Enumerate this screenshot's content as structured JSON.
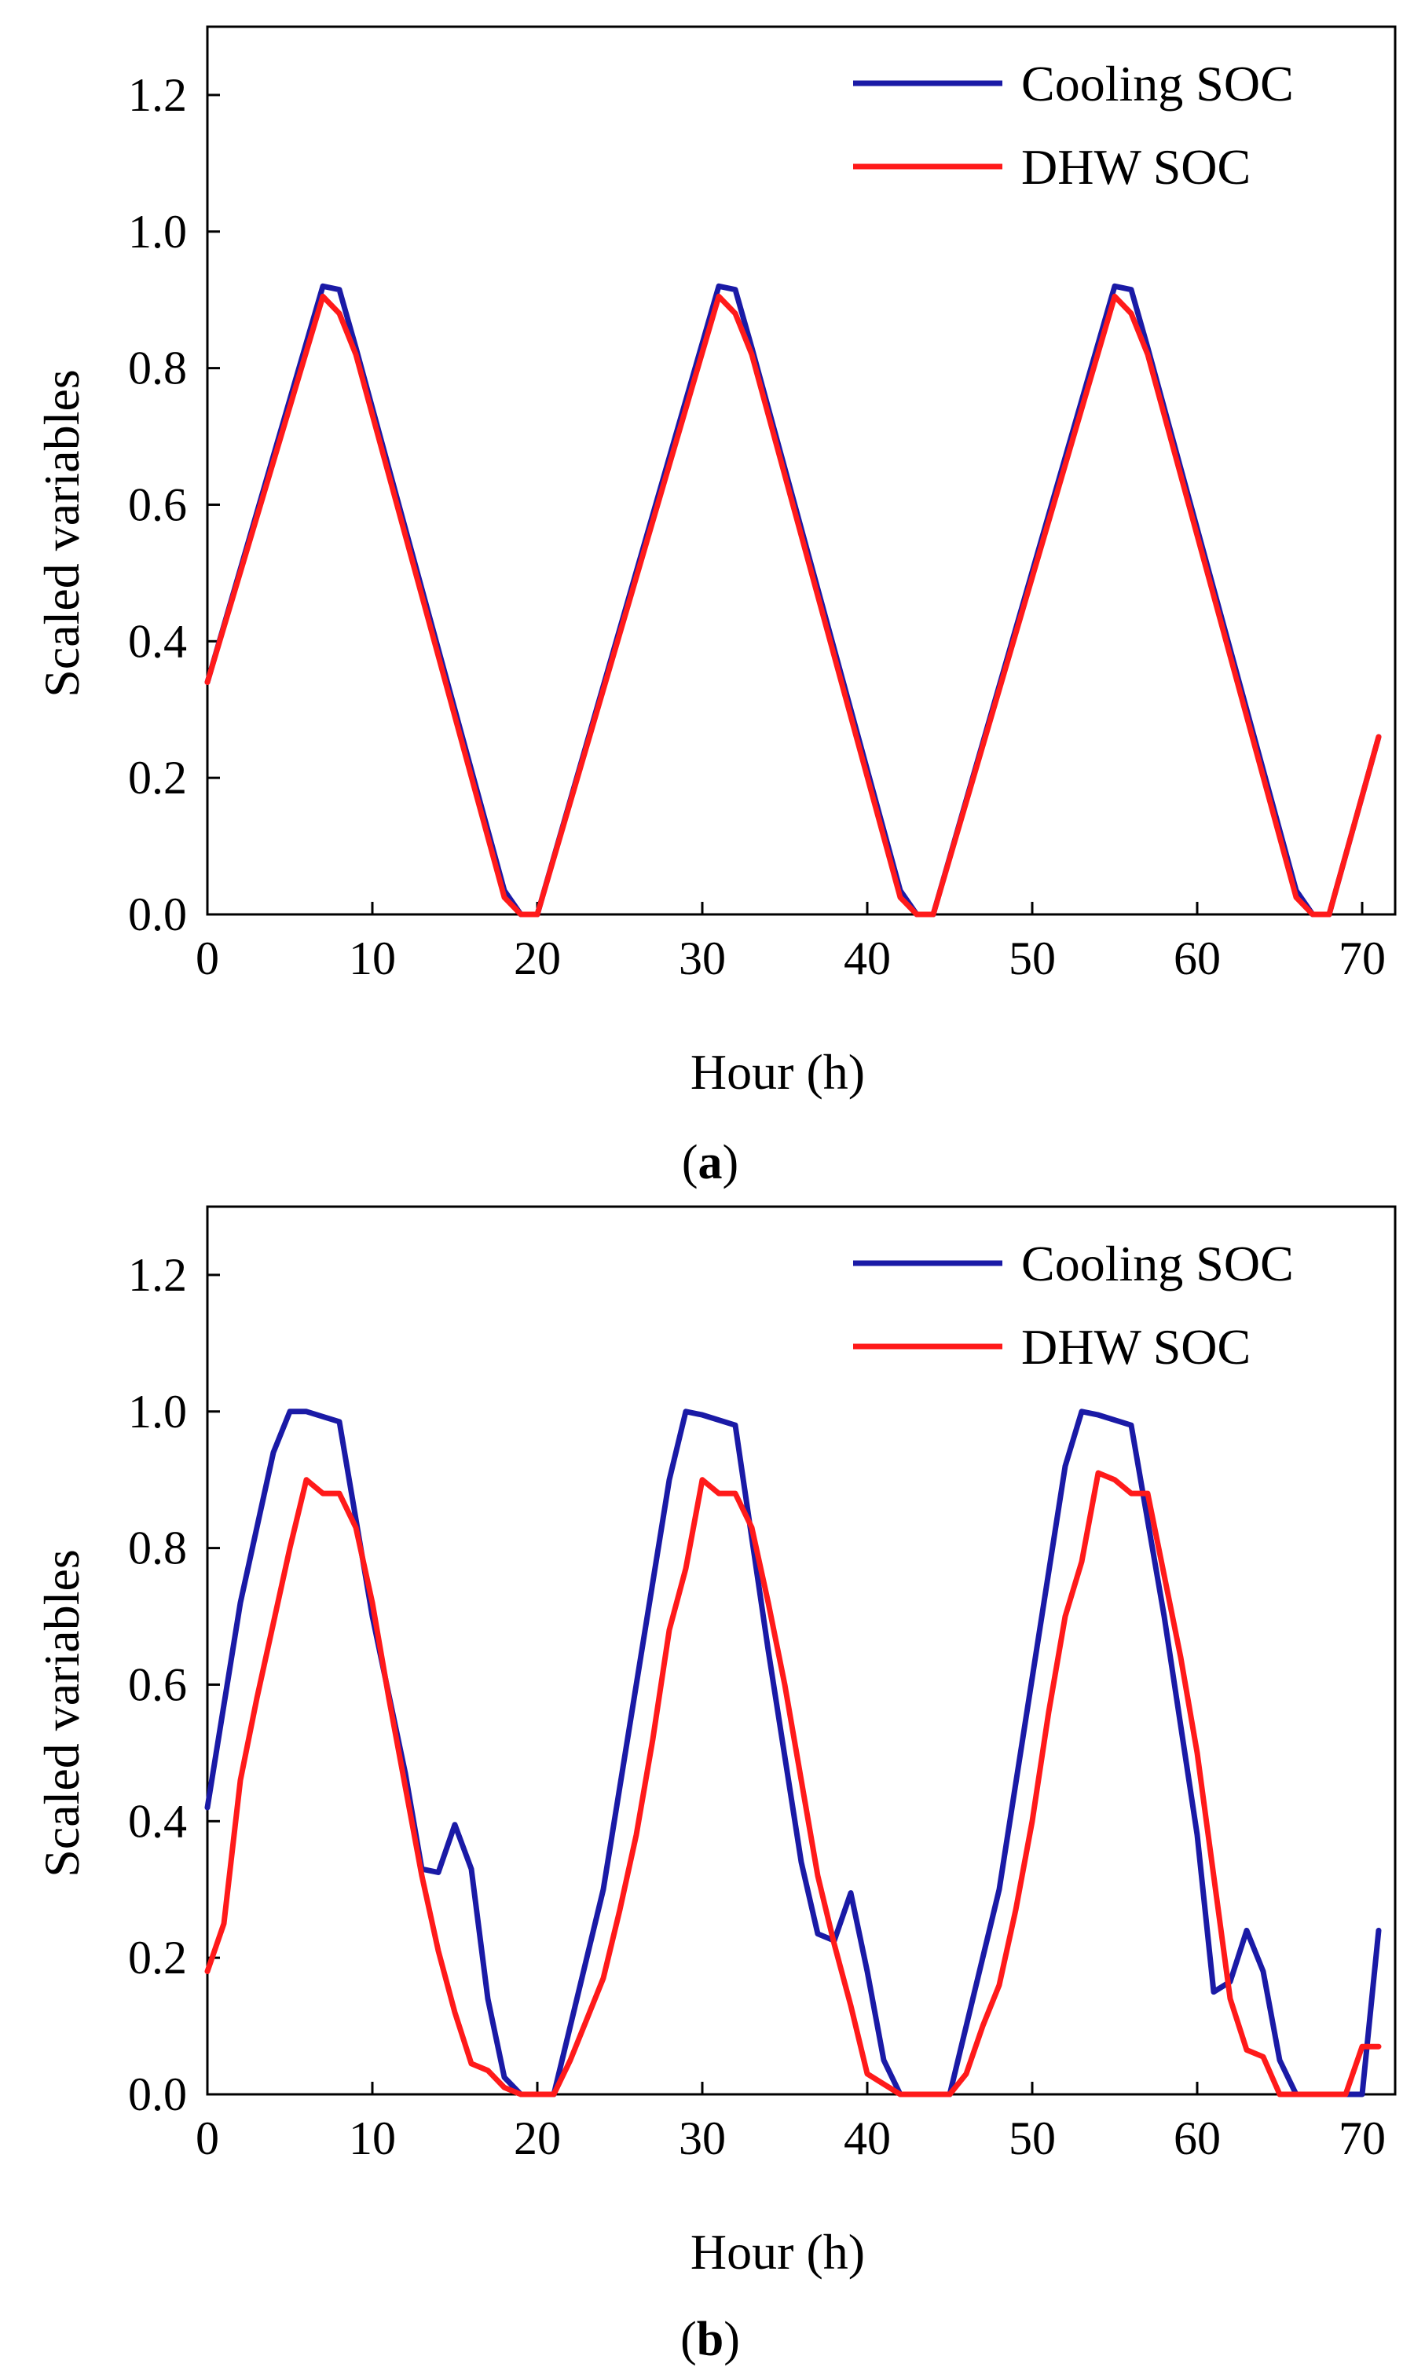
{
  "chart_data": [
    {
      "type": "line",
      "caption_open": "(",
      "caption_letter": "a",
      "caption_close": ")",
      "xlabel": "Hour (h)",
      "ylabel": "Scaled variables",
      "xlim": [
        0,
        72
      ],
      "ylim": [
        0,
        1.3
      ],
      "xticks": [
        0,
        10,
        20,
        30,
        40,
        50,
        60,
        70
      ],
      "xtick_labels": [
        "0",
        "10",
        "20",
        "30",
        "40",
        "50",
        "60",
        "70"
      ],
      "yticks": [
        0.0,
        0.2,
        0.4,
        0.6,
        0.8,
        1.0,
        1.2
      ],
      "ytick_labels": [
        "0.0",
        "0.2",
        "0.4",
        "0.6",
        "0.8",
        "1.0",
        "1.2"
      ],
      "grid": false,
      "legend_position": "top-right",
      "series": [
        {
          "name": "Cooling SOC",
          "color": "#1a1aa6",
          "x": [
            0,
            7,
            8,
            9,
            18,
            19,
            20,
            31,
            32,
            33,
            42,
            43,
            44,
            55,
            56,
            57,
            66,
            67,
            68,
            71
          ],
          "y": [
            0.34,
            0.92,
            0.915,
            0.83,
            0.035,
            0.0,
            0.0,
            0.92,
            0.915,
            0.83,
            0.035,
            0.0,
            0.0,
            0.92,
            0.915,
            0.83,
            0.035,
            0.0,
            0.0,
            0.26
          ]
        },
        {
          "name": "DHW SOC",
          "color": "#ff1a1a",
          "x": [
            0,
            7,
            8,
            9,
            18,
            19,
            20,
            31,
            32,
            33,
            42,
            43,
            44,
            55,
            56,
            57,
            66,
            67,
            68,
            71
          ],
          "y": [
            0.34,
            0.905,
            0.88,
            0.82,
            0.025,
            0.0,
            0.0,
            0.905,
            0.88,
            0.82,
            0.025,
            0.0,
            0.0,
            0.905,
            0.88,
            0.82,
            0.025,
            0.0,
            0.0,
            0.26
          ]
        }
      ]
    },
    {
      "type": "line",
      "caption_open": "(",
      "caption_letter": "b",
      "caption_close": ")",
      "xlabel": "Hour (h)",
      "ylabel": "Scaled variables",
      "xlim": [
        0,
        72
      ],
      "ylim": [
        0,
        1.3
      ],
      "xticks": [
        0,
        10,
        20,
        30,
        40,
        50,
        60,
        70
      ],
      "xtick_labels": [
        "0",
        "10",
        "20",
        "30",
        "40",
        "50",
        "60",
        "70"
      ],
      "yticks": [
        0.0,
        0.2,
        0.4,
        0.6,
        0.8,
        1.0,
        1.2
      ],
      "ytick_labels": [
        "0.0",
        "0.2",
        "0.4",
        "0.6",
        "0.8",
        "1.0",
        "1.2"
      ],
      "grid": false,
      "legend_position": "top-right",
      "series": [
        {
          "name": "Cooling SOC",
          "color": "#1a1aa6",
          "x": [
            0,
            2,
            4,
            5,
            6,
            8,
            10,
            12,
            13,
            14,
            15,
            16,
            17,
            18,
            19,
            20,
            21,
            24,
            28,
            29,
            30,
            32,
            34,
            36,
            37,
            38,
            39,
            40,
            41,
            42,
            43,
            44,
            45,
            48,
            52,
            53,
            54,
            56,
            58,
            60,
            61,
            62,
            63,
            64,
            65,
            66,
            67,
            68,
            69,
            70,
            71
          ],
          "y": [
            0.42,
            0.72,
            0.94,
            1.0,
            1.0,
            0.985,
            0.7,
            0.47,
            0.33,
            0.325,
            0.395,
            0.33,
            0.14,
            0.025,
            0.0,
            0.0,
            0.0,
            0.3,
            0.9,
            1.0,
            0.995,
            0.98,
            0.65,
            0.34,
            0.235,
            0.225,
            0.295,
            0.18,
            0.05,
            0.0,
            0.0,
            0.0,
            0.0,
            0.3,
            0.92,
            1.0,
            0.995,
            0.98,
            0.7,
            0.38,
            0.15,
            0.165,
            0.24,
            0.18,
            0.05,
            0.0,
            0.0,
            0.0,
            0.0,
            0.0,
            0.24
          ]
        },
        {
          "name": "DHW SOC",
          "color": "#ff1a1a",
          "x": [
            0,
            1,
            2,
            3,
            4,
            5,
            6,
            7,
            8,
            9,
            10,
            11,
            12,
            13,
            14,
            15,
            16,
            17,
            18,
            19,
            20,
            21,
            22,
            23,
            24,
            25,
            26,
            27,
            28,
            29,
            30,
            31,
            32,
            33,
            34,
            35,
            36,
            37,
            38,
            39,
            40,
            41,
            42,
            43,
            44,
            45,
            46,
            47,
            48,
            49,
            50,
            51,
            52,
            53,
            54,
            55,
            56,
            57,
            58,
            59,
            60,
            61,
            62,
            63,
            64,
            65,
            66,
            67,
            68,
            69,
            70,
            71
          ],
          "y": [
            0.18,
            0.25,
            0.46,
            0.58,
            0.69,
            0.8,
            0.9,
            0.88,
            0.88,
            0.83,
            0.72,
            0.58,
            0.45,
            0.32,
            0.21,
            0.12,
            0.045,
            0.035,
            0.01,
            0.0,
            0.0,
            0.0,
            0.05,
            0.11,
            0.17,
            0.27,
            0.38,
            0.52,
            0.68,
            0.77,
            0.9,
            0.88,
            0.88,
            0.83,
            0.72,
            0.6,
            0.46,
            0.32,
            0.22,
            0.13,
            0.03,
            0.015,
            0.0,
            0.0,
            0.0,
            0.0,
            0.03,
            0.1,
            0.16,
            0.27,
            0.4,
            0.56,
            0.7,
            0.78,
            0.91,
            0.9,
            0.88,
            0.88,
            0.76,
            0.64,
            0.5,
            0.32,
            0.14,
            0.065,
            0.055,
            0.0,
            0.0,
            0.0,
            0.0,
            0.0,
            0.07,
            0.07
          ]
        }
      ]
    }
  ]
}
